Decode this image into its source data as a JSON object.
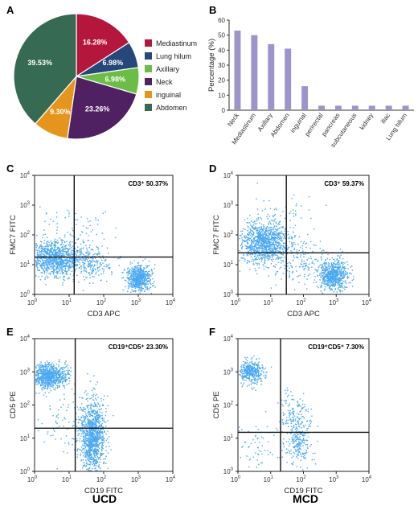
{
  "colors": {
    "mediastinum": "#b5173c",
    "lung_hilum": "#25477a",
    "axillary": "#6cbd45",
    "neck": "#4f2163",
    "inguinal": "#e6951c",
    "abdomen": "#366a52",
    "bar": "#9b95cc",
    "dots": "#4aa8f0"
  },
  "panels": {
    "a": "A",
    "b": "B",
    "c": "C",
    "d": "D",
    "e": "E",
    "f": "F"
  },
  "chart_data": [
    {
      "panel": "A",
      "type": "pie",
      "slices": [
        {
          "label": "Mediastinum",
          "value": 16.28,
          "text": "16.28%",
          "color": "#b5173c"
        },
        {
          "label": "Lung hilum",
          "value": 6.98,
          "text": "6.98%",
          "color": "#25477a"
        },
        {
          "label": "Axillary",
          "value": 6.98,
          "text": "6.98%",
          "color": "#6cbd45"
        },
        {
          "label": "Neck",
          "value": 23.26,
          "text": "23.26%",
          "color": "#4f2163"
        },
        {
          "label": "inguinal",
          "value": 9.3,
          "text": "9.30%",
          "color": "#e6951c"
        },
        {
          "label": "Abdomen",
          "value": 39.53,
          "text": "39.53%",
          "color": "#366a52"
        }
      ],
      "legend_position": "right"
    },
    {
      "panel": "B",
      "type": "bar",
      "categories": [
        "Neck",
        "Mediastinum",
        "Axillary",
        "Abdomen",
        "inguinal",
        "perirectal",
        "pancreas",
        "subcutaneous",
        "kidney",
        "iliac",
        "Lung hilum"
      ],
      "values": [
        53,
        50,
        44,
        41,
        16,
        3,
        3,
        3,
        3,
        3,
        3
      ],
      "ylabel": "Percentage (%)",
      "ylim": [
        0,
        60
      ],
      "yticks": [
        "0",
        "10",
        "20",
        "30",
        "40",
        "50",
        "60"
      ]
    },
    {
      "panel": "C",
      "type": "scatter",
      "xlabel": "CD3 APC",
      "ylabel": "FMC7 FITC",
      "gate_text": "CD3⁺ 50.37%",
      "scale": "log",
      "xlim": [
        1,
        10000
      ],
      "ylim": [
        1,
        10000
      ],
      "gate_x": 14,
      "gate_y": 18
    },
    {
      "panel": "D",
      "type": "scatter",
      "xlabel": "CD3 APC",
      "ylabel": "FMC7 FITC",
      "gate_text": "CD3⁺ 59.37%",
      "scale": "log",
      "xlim": [
        1,
        10000
      ],
      "ylim": [
        1,
        10000
      ],
      "gate_x": 30,
      "gate_y": 25
    },
    {
      "panel": "E",
      "type": "scatter",
      "xlabel": "CD19 FITC",
      "ylabel": "CD5 PE",
      "gate_text": "CD19⁺CD5⁺ 23.30%",
      "scale": "log",
      "xlim": [
        1,
        10000
      ],
      "ylim": [
        1,
        10000
      ],
      "gate_x": 15,
      "gate_y": 20,
      "caption": "UCD"
    },
    {
      "panel": "F",
      "type": "scatter",
      "xlabel": "CD19 FITC",
      "ylabel": "CD5 PE",
      "gate_text": "CD19⁺CD5⁺ 7.30%",
      "scale": "log",
      "xlim": [
        1,
        10000
      ],
      "ylim": [
        1,
        10000
      ],
      "gate_x": 20,
      "gate_y": 15,
      "caption": "MCD"
    }
  ]
}
